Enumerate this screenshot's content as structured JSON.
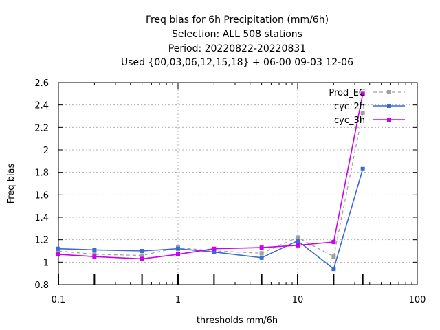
{
  "chart_data": {
    "type": "line",
    "title_lines": [
      "Freq bias  for 6h Precipitation (mm/6h)",
      "Selection: ALL    508 stations",
      "Period: 20220822-20220831",
      "Used {00,03,06,12,15,18} + 06-00 09-03 12-06"
    ],
    "xlabel": "thresholds mm/6h",
    "ylabel": "Freq bias",
    "xscale": "log",
    "xlim": [
      0.1,
      100
    ],
    "ylim": [
      0.8,
      2.6
    ],
    "grid": true,
    "legend_position": "top-right",
    "x_ticks": [
      0.1,
      1,
      10,
      100
    ],
    "x_tick_labels": [
      "0.1",
      "1",
      "10",
      "100"
    ],
    "y_ticks": [
      0.8,
      1.0,
      1.2,
      1.4,
      1.6,
      1.8,
      2.0,
      2.2,
      2.4,
      2.6
    ],
    "y_tick_labels": [
      "0.8",
      "1",
      "1.2",
      "1.4",
      "1.6",
      "1.8",
      "2",
      "2.2",
      "2.4",
      "2.6"
    ],
    "threshold_markers": [
      0.1,
      0.2,
      0.5,
      1,
      2,
      5,
      10,
      20,
      35
    ],
    "series": [
      {
        "name": "Prod_EC",
        "color": "#a0a0a0",
        "dashed": true,
        "x": [
          0.1,
          0.2,
          0.5,
          1,
          2,
          5,
          10,
          20,
          35
        ],
        "values": [
          1.1,
          1.07,
          1.06,
          1.13,
          1.1,
          1.08,
          1.22,
          1.05,
          2.33
        ]
      },
      {
        "name": "cyc_2h",
        "color": "#3a6bd4",
        "dashed": false,
        "x": [
          0.1,
          0.2,
          0.5,
          1,
          2,
          5,
          10,
          20,
          35
        ],
        "values": [
          1.12,
          1.11,
          1.1,
          1.12,
          1.09,
          1.04,
          1.19,
          0.94,
          1.83
        ]
      },
      {
        "name": "cyc_3h",
        "color": "#cc00ee",
        "dashed": false,
        "x": [
          0.1,
          0.2,
          0.5,
          1,
          2,
          5,
          10,
          20,
          35
        ],
        "values": [
          1.07,
          1.05,
          1.03,
          1.07,
          1.12,
          1.13,
          1.15,
          1.18,
          2.5
        ]
      }
    ]
  }
}
